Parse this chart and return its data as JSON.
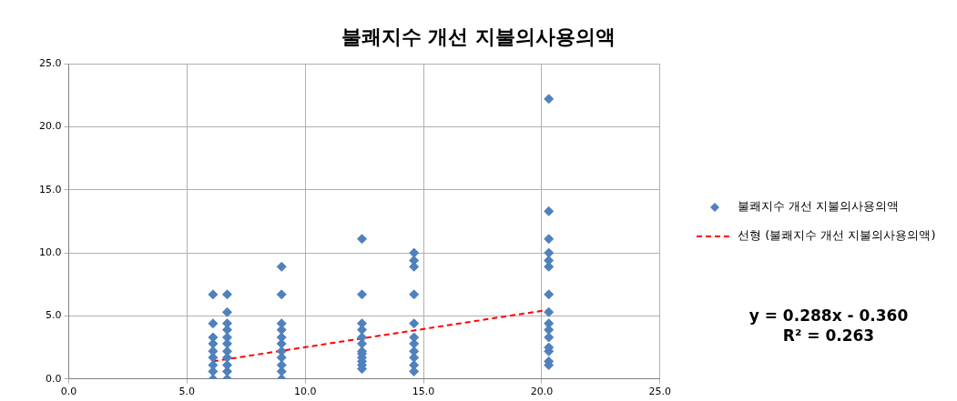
{
  "chart_data": {
    "type": "scatter",
    "title": "불쾌지수 개선 지불의사용의액",
    "series": [
      {
        "name": "불쾌지수 개선 지불의사용의액",
        "color": "#4f81bd",
        "marker": "diamond",
        "x": [
          6.1,
          6.1,
          6.1,
          6.1,
          6.1,
          6.1,
          6.1,
          6.1,
          6.1,
          6.7,
          6.7,
          6.7,
          6.7,
          6.7,
          6.7,
          6.7,
          6.7,
          6.7,
          6.7,
          6.7,
          9.0,
          9.0,
          9.0,
          9.0,
          9.0,
          9.0,
          9.0,
          9.0,
          9.0,
          9.0,
          9.0,
          12.4,
          12.4,
          12.4,
          12.4,
          12.4,
          12.4,
          12.4,
          12.4,
          12.4,
          12.4,
          12.4,
          12.4,
          14.6,
          14.6,
          14.6,
          14.6,
          14.6,
          14.6,
          14.6,
          14.6,
          14.6,
          14.6,
          14.6,
          20.3,
          20.3,
          20.3,
          20.3,
          20.3,
          20.3,
          20.3,
          20.3,
          20.3,
          20.3,
          20.3,
          20.3,
          20.3,
          20.3,
          20.3
        ],
        "values": [
          0,
          0.6,
          1.1,
          1.7,
          2.2,
          2.8,
          3.3,
          4.4,
          6.7,
          0,
          0.6,
          1.1,
          1.7,
          2.2,
          2.8,
          3.3,
          3.9,
          4.4,
          5.3,
          6.7,
          0,
          0.6,
          1.1,
          1.7,
          2.2,
          2.8,
          3.3,
          3.9,
          4.4,
          6.7,
          8.9,
          0.8,
          1.1,
          1.4,
          1.7,
          2.0,
          2.2,
          2.8,
          3.3,
          3.9,
          4.4,
          6.7,
          11.1,
          0.6,
          1.1,
          1.7,
          2.2,
          2.8,
          3.3,
          4.4,
          6.7,
          8.9,
          9.4,
          10.0,
          1.1,
          1.4,
          2.2,
          2.5,
          3.3,
          3.9,
          4.4,
          5.3,
          6.7,
          8.9,
          9.4,
          10.0,
          11.1,
          13.3,
          22.2
        ]
      },
      {
        "name": "선형 (불쾌지수 개선 지불의사용의액)",
        "type": "line",
        "color": "#ff0000",
        "line_style": "dashed",
        "marker": "none",
        "x": [
          6.1,
          20.3
        ],
        "values": [
          1.4,
          5.49
        ]
      }
    ],
    "xlim": [
      0,
      25
    ],
    "xticks": [
      {
        "value": 0,
        "label": "0.0"
      },
      {
        "value": 5,
        "label": "5.0"
      },
      {
        "value": 10,
        "label": "10.0"
      },
      {
        "value": 15,
        "label": "15.0"
      },
      {
        "value": 20,
        "label": "20.0"
      },
      {
        "value": 25,
        "label": "25.0"
      }
    ],
    "ylim": [
      0,
      25
    ],
    "yticks": [
      {
        "value": 0,
        "label": "0.0"
      },
      {
        "value": 5,
        "label": "5.0"
      },
      {
        "value": 10,
        "label": "10.0"
      },
      {
        "value": 15,
        "label": "15.0"
      },
      {
        "value": 20,
        "label": "20.0"
      },
      {
        "value": 25,
        "label": "25.0"
      }
    ],
    "grid": true,
    "legend": "right",
    "annotations": [
      "y = 0.288x - 0.360",
      "R² = 0.263"
    ]
  }
}
